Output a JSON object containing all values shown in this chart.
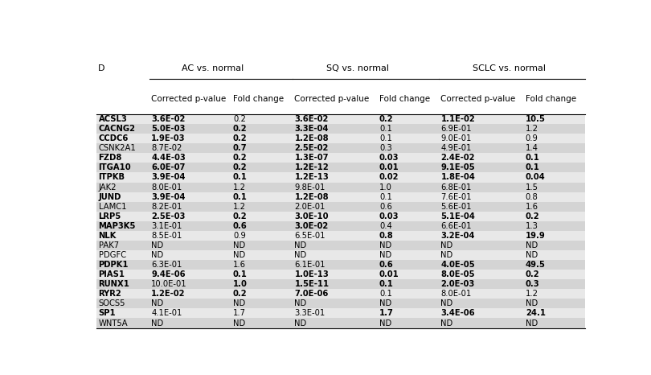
{
  "col_header_row1_labels": [
    "D",
    "AC vs. normal",
    "SQ vs. normal",
    "SCLC vs. normal"
  ],
  "col_header_row2": [
    "Corrected p-value",
    "Fold change",
    "Corrected p-value",
    "Fold change",
    "Corrected p-value",
    "Fold change"
  ],
  "rows": [
    [
      "ACSL3",
      "3.6E-02",
      "0.2",
      "3.6E-02",
      "0.2",
      "1.1E-02",
      "10.5"
    ],
    [
      "CACNG2",
      "5.0E-03",
      "0.2",
      "3.3E-04",
      "0.1",
      "6.9E-01",
      "1.2"
    ],
    [
      "CCDC6",
      "1.9E-03",
      "0.2",
      "1.2E-08",
      "0.1",
      "9.0E-01",
      "0.9"
    ],
    [
      "CSNK2A1",
      "8.7E-02",
      "0.7",
      "2.5E-02",
      "0.3",
      "4.9E-01",
      "1.4"
    ],
    [
      "FZD8",
      "4.4E-03",
      "0.2",
      "1.3E-07",
      "0.03",
      "2.4E-02",
      "0.1"
    ],
    [
      "ITGA10",
      "6.0E-07",
      "0.2",
      "1.2E-12",
      "0.01",
      "9.1E-05",
      "0.1"
    ],
    [
      "ITPKB",
      "3.9E-04",
      "0.1",
      "1.2E-13",
      "0.02",
      "1.8E-04",
      "0.04"
    ],
    [
      "JAK2",
      "8.0E-01",
      "1.2",
      "9.8E-01",
      "1.0",
      "6.8E-01",
      "1.5"
    ],
    [
      "JUND",
      "3.9E-04",
      "0.1",
      "1.2E-08",
      "0.1",
      "7.6E-01",
      "0.8"
    ],
    [
      "LAMC1",
      "8.2E-01",
      "1.2",
      "2.0E-01",
      "0.6",
      "5.6E-01",
      "1.6"
    ],
    [
      "LRP5",
      "2.5E-03",
      "0.2",
      "3.0E-10",
      "0.03",
      "5.1E-04",
      "0.2"
    ],
    [
      "MAP3K5",
      "3.1E-01",
      "0.6",
      "3.0E-02",
      "0.4",
      "6.6E-01",
      "1.3"
    ],
    [
      "NLK",
      "8.5E-01",
      "0.9",
      "6.5E-01",
      "0.8",
      "3.2E-04",
      "19.9"
    ],
    [
      "PAK7",
      "ND",
      "ND",
      "ND",
      "ND",
      "ND",
      "ND"
    ],
    [
      "PDGFC",
      "ND",
      "ND",
      "ND",
      "ND",
      "ND",
      "ND"
    ],
    [
      "PDPK1",
      "6.3E-01",
      "1.6",
      "6.1E-01",
      "0.6",
      "4.0E-05",
      "49.5"
    ],
    [
      "PIAS1",
      "9.4E-06",
      "0.1",
      "1.0E-13",
      "0.01",
      "8.0E-05",
      "0.2"
    ],
    [
      "RUNX1",
      "10.0E-01",
      "1.0",
      "1.5E-11",
      "0.1",
      "2.0E-03",
      "0.3"
    ],
    [
      "RYR2",
      "1.2E-02",
      "0.2",
      "7.0E-06",
      "0.1",
      "8.0E-01",
      "1.2"
    ],
    [
      "SOCS5",
      "ND",
      "ND",
      "ND",
      "ND",
      "ND",
      "ND"
    ],
    [
      "SP1",
      "4.1E-01",
      "1.7",
      "3.3E-01",
      "1.7",
      "3.4E-06",
      "24.1"
    ],
    [
      "WNT5A",
      "ND",
      "ND",
      "ND",
      "ND",
      "ND",
      "ND"
    ]
  ],
  "bold_map": {
    "0": [
      0,
      1,
      3,
      4,
      5,
      6
    ],
    "1": [
      0,
      1,
      2,
      3
    ],
    "2": [
      0,
      1,
      2,
      3
    ],
    "3": [
      2,
      3
    ],
    "4": [
      0,
      1,
      2,
      3,
      4,
      5,
      6
    ],
    "5": [
      0,
      1,
      2,
      3,
      4,
      5,
      6
    ],
    "6": [
      0,
      1,
      2,
      3,
      4,
      5,
      6
    ],
    "7": [],
    "8": [
      0,
      1,
      2,
      3
    ],
    "9": [],
    "10": [
      0,
      1,
      2,
      3,
      4,
      5,
      6
    ],
    "11": [
      0,
      2,
      3
    ],
    "12": [
      0,
      4,
      5,
      6
    ],
    "13": [],
    "14": [],
    "15": [
      0,
      4,
      5,
      6
    ],
    "16": [
      0,
      1,
      2,
      3,
      4,
      5,
      6
    ],
    "17": [
      0,
      2,
      3,
      4,
      5,
      6
    ],
    "18": [
      0,
      1,
      2,
      3
    ],
    "19": [],
    "20": [
      0,
      4,
      5,
      6
    ],
    "21": []
  },
  "light_row_color": "#e8e8e8",
  "dark_row_color": "#d4d4d4",
  "font_size": 7.2,
  "header_font_size": 7.5,
  "group_font_size": 8.0
}
